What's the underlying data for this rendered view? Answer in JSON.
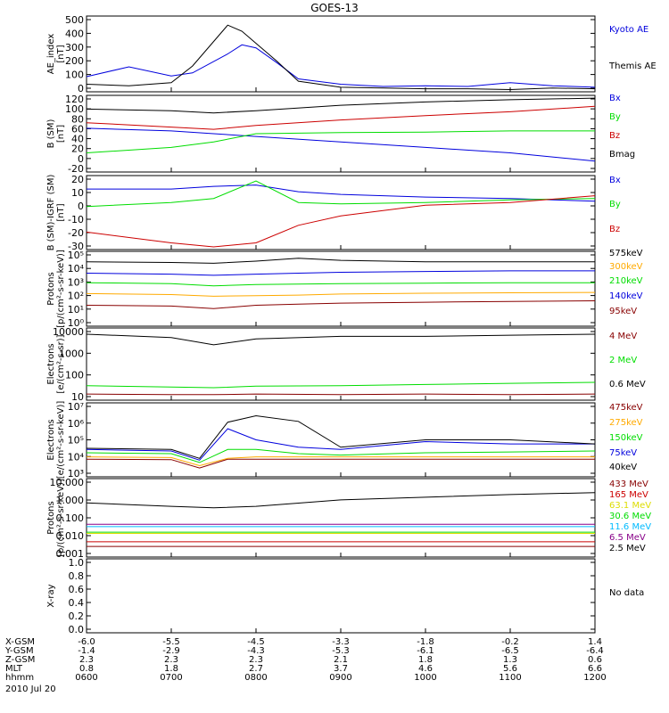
{
  "title": "GOES-13",
  "date_label": "2010 Jul 20",
  "colors": {
    "black": "#000000",
    "blue": "#0000dd",
    "red": "#cc0000",
    "green": "#00dd00",
    "orange": "#ffaa00",
    "cyan": "#00bbff",
    "purple": "#880088",
    "darkred": "#880000",
    "yellow": "#dddd00"
  },
  "footer": {
    "row_labels": [
      "X-GSM",
      "Y-GSM",
      "Z-GSM",
      "MLT",
      "hhmm"
    ],
    "columns": [
      [
        "-6.0",
        "-1.4",
        "2.3",
        "0.8",
        "0600"
      ],
      [
        "-5.5",
        "-2.9",
        "2.3",
        "1.8",
        "0700"
      ],
      [
        "-4.5",
        "-4.3",
        "2.3",
        "2.7",
        "0800"
      ],
      [
        "-3.3",
        "-5.3",
        "2.1",
        "3.7",
        "0900"
      ],
      [
        "-1.8",
        "-6.1",
        "1.8",
        "4.6",
        "1000"
      ],
      [
        "-0.2",
        "-6.5",
        "1.3",
        "5.6",
        "1100"
      ],
      [
        "1.4",
        "-6.4",
        "0.6",
        "6.6",
        "1200"
      ]
    ]
  },
  "chart_data": [
    {
      "type": "line",
      "panel": "ae",
      "ylabel": "AE_index [nT]",
      "ylim": [
        0,
        500
      ],
      "yscale": "linear",
      "yticks": [
        "500",
        "400",
        "300",
        "200",
        "100",
        "0"
      ],
      "x": [
        "0600",
        "0630",
        "0700",
        "0715",
        "0740",
        "0750",
        "0800",
        "0815",
        "0830",
        "0900",
        "0930",
        "1000",
        "1030",
        "1100",
        "1130",
        "1200"
      ],
      "series": [
        {
          "name": "Kyoto AE",
          "color": "blue",
          "values": [
            100,
            165,
            105,
            125,
            250,
            310,
            290,
            190,
            85,
            50,
            35,
            40,
            35,
            60,
            40,
            30
          ]
        },
        {
          "name": "Themis AE",
          "color": "black",
          "values": [
            50,
            40,
            60,
            170,
            440,
            400,
            320,
            200,
            70,
            30,
            25,
            20,
            20,
            15,
            25,
            20
          ]
        }
      ]
    },
    {
      "type": "line",
      "panel": "bsm",
      "ylabel": "B (SM) [nT]",
      "ylim": [
        -20,
        120
      ],
      "yscale": "linear",
      "yticks": [
        "120",
        "100",
        "80",
        "60",
        "40",
        "20",
        "0",
        "-20"
      ],
      "x": [
        "0600",
        "0700",
        "0730",
        "0800",
        "0900",
        "1000",
        "1100",
        "1200"
      ],
      "series": [
        {
          "name": "Bx",
          "color": "blue",
          "values": [
            60,
            55,
            50,
            45,
            35,
            25,
            15,
            0
          ]
        },
        {
          "name": "By",
          "color": "green",
          "values": [
            15,
            25,
            35,
            50,
            52,
            53,
            55,
            55
          ]
        },
        {
          "name": "Bz",
          "color": "red",
          "values": [
            70,
            62,
            58,
            65,
            75,
            83,
            90,
            100
          ]
        },
        {
          "name": "Bmag",
          "color": "black",
          "values": [
            95,
            92,
            88,
            92,
            102,
            108,
            112,
            115
          ]
        }
      ]
    },
    {
      "type": "line",
      "panel": "bigrf",
      "ylabel": "B (SM)-IGRF (SM) [nT]",
      "ylim": [
        -33,
        22
      ],
      "yscale": "linear",
      "yticks": [
        "20",
        "10",
        "0",
        "-10",
        "-20",
        "-30"
      ],
      "x": [
        "0600",
        "0700",
        "0730",
        "0800",
        "0830",
        "0900",
        "1000",
        "1100",
        "1200"
      ],
      "series": [
        {
          "name": "Bx",
          "color": "blue",
          "values": [
            12,
            12,
            14,
            15,
            10,
            8,
            6,
            5,
            3
          ]
        },
        {
          "name": "By",
          "color": "green",
          "values": [
            -1,
            2,
            5,
            18,
            2,
            1,
            2,
            4,
            5
          ]
        },
        {
          "name": "Bz",
          "color": "red",
          "values": [
            -20,
            -28,
            -31,
            -28,
            -15,
            -8,
            0,
            2,
            7
          ]
        }
      ]
    },
    {
      "type": "line",
      "panel": "protons_low",
      "ylabel": "Protons [p/(cm²-s-sr-keV)]",
      "ylim": [
        1,
        100000
      ],
      "yscale": "log",
      "yticks": [
        "10⁵",
        "10⁴",
        "10³",
        "10²",
        "10¹",
        "10⁰"
      ],
      "x": [
        "0600",
        "0700",
        "0730",
        "0800",
        "0830",
        "0900",
        "1000",
        "1100",
        "1200"
      ],
      "series": [
        {
          "name": "575keV",
          "color": "black",
          "values": [
            20000,
            18000,
            16000,
            22000,
            35000,
            25000,
            20000,
            20000,
            20000
          ]
        },
        {
          "name": "300keV",
          "color": "orange",
          "values": [
            150,
            130,
            100,
            110,
            120,
            140,
            160,
            170,
            180
          ]
        },
        {
          "name": "210keV",
          "color": "green",
          "values": [
            800,
            700,
            500,
            600,
            650,
            700,
            750,
            800,
            800
          ]
        },
        {
          "name": "140keV",
          "color": "blue",
          "values": [
            3500,
            3000,
            2500,
            3000,
            3500,
            4000,
            4500,
            5000,
            5000
          ]
        },
        {
          "name": "95keV",
          "color": "darkred",
          "values": [
            25,
            22,
            15,
            25,
            30,
            35,
            40,
            45,
            50
          ]
        }
      ]
    },
    {
      "type": "line",
      "panel": "electrons_high",
      "ylabel": "Electrons [e/(cm²-s-sr)]",
      "ylim": [
        10,
        10000
      ],
      "yscale": "log",
      "yticks": [
        "10000",
        "1000",
        "100",
        "10"
      ],
      "x": [
        "0600",
        "0700",
        "0730",
        "0800",
        "0900",
        "1000",
        "1100",
        "1200"
      ],
      "series": [
        {
          "name": "4 MeV",
          "color": "darkred",
          "values": [
            18,
            17,
            17,
            18,
            17,
            18,
            17,
            18
          ]
        },
        {
          "name": "2 MeV",
          "color": "green",
          "values": [
            40,
            35,
            33,
            38,
            40,
            45,
            50,
            55
          ]
        },
        {
          "name": "0.6 MeV",
          "color": "black",
          "values": [
            5500,
            4000,
            2000,
            3500,
            4500,
            4500,
            5000,
            5500
          ]
        }
      ]
    },
    {
      "type": "line",
      "panel": "electrons_low",
      "ylabel": "Electrons [e/(cm²-s-sr-keV)]",
      "ylim": [
        1000,
        10000000
      ],
      "yscale": "log",
      "yticks": [
        "10⁷",
        "10⁶",
        "10⁵",
        "10⁴",
        "10³"
      ],
      "x": [
        "0600",
        "0700",
        "0720",
        "0740",
        "0800",
        "0830",
        "0900",
        "1000",
        "1100",
        "1200"
      ],
      "series": [
        {
          "name": "475keV",
          "color": "darkred",
          "values": [
            9000,
            8500,
            3000,
            9000,
            9000,
            9000,
            9000,
            9000,
            9000,
            9000
          ]
        },
        {
          "name": "275keV",
          "color": "orange",
          "values": [
            12000,
            11000,
            4000,
            10000,
            12000,
            12000,
            12000,
            12000,
            12000,
            12000
          ]
        },
        {
          "name": "150keV",
          "color": "green",
          "values": [
            20000,
            18000,
            6000,
            30000,
            30000,
            18000,
            15000,
            20000,
            22000,
            25000
          ]
        },
        {
          "name": "75keV",
          "color": "blue",
          "values": [
            30000,
            25000,
            8000,
            400000,
            100000,
            40000,
            30000,
            80000,
            60000,
            60000
          ]
        },
        {
          "name": "40keV",
          "color": "black",
          "values": [
            35000,
            30000,
            10000,
            900000,
            2000000,
            1000000,
            40000,
            100000,
            100000,
            60000
          ]
        }
      ]
    },
    {
      "type": "line",
      "panel": "protons_high",
      "ylabel": "Protons [p/(cm²-s-sr-keV)]",
      "ylim": [
        0.0007,
        100
      ],
      "yscale": "log",
      "yticks": [
        "10.000",
        "1.000",
        "0.100",
        "0.010",
        "0.001"
      ],
      "x": [
        "0600",
        "0700",
        "0730",
        "0800",
        "0900",
        "1000",
        "1100",
        "1200"
      ],
      "series": [
        {
          "name": "433 MeV",
          "color": "darkred",
          "values": [
            0.0035,
            0.0035,
            0.0035,
            0.0035,
            0.0035,
            0.0035,
            0.0035,
            0.0035
          ]
        },
        {
          "name": "165 MeV",
          "color": "red",
          "values": [
            0.007,
            0.007,
            0.007,
            0.007,
            0.007,
            0.007,
            0.007,
            0.007
          ]
        },
        {
          "name": "63.1 MeV",
          "color": "yellow",
          "values": [
            0.025,
            0.025,
            0.025,
            0.025,
            0.025,
            0.025,
            0.025,
            0.025
          ]
        },
        {
          "name": "30.6 MeV",
          "color": "green",
          "values": [
            0.03,
            0.03,
            0.03,
            0.03,
            0.03,
            0.03,
            0.03,
            0.03
          ]
        },
        {
          "name": "11.6 MeV",
          "color": "cyan",
          "values": [
            0.07,
            0.07,
            0.07,
            0.07,
            0.07,
            0.07,
            0.07,
            0.07
          ]
        },
        {
          "name": "6.5 MeV",
          "color": "purple",
          "values": [
            0.1,
            0.1,
            0.1,
            0.1,
            0.1,
            0.1,
            0.1,
            0.1
          ]
        },
        {
          "name": "2.5 MeV",
          "color": "black",
          "values": [
            2.5,
            1.5,
            1.2,
            1.5,
            4,
            6,
            9,
            12
          ]
        }
      ]
    },
    {
      "type": "line",
      "panel": "xray",
      "ylabel": "X-ray",
      "ylim": [
        0,
        1
      ],
      "yscale": "linear",
      "yticks": [
        "1.0",
        "0.8",
        "0.6",
        "0.4",
        "0.2",
        "0.0"
      ],
      "x": [],
      "series": [],
      "annotation": "No data"
    }
  ]
}
